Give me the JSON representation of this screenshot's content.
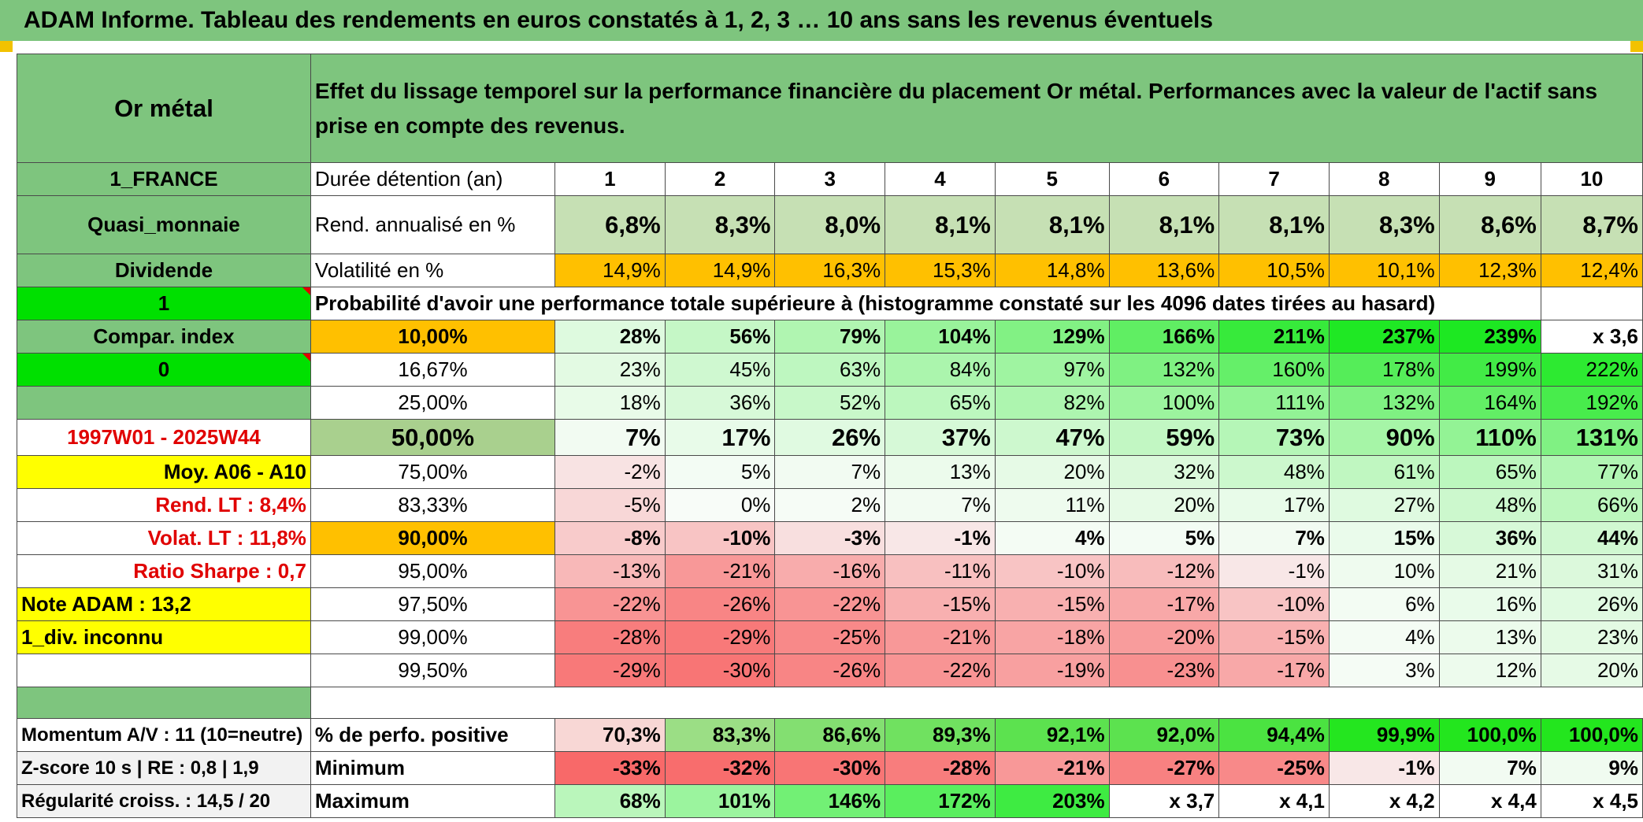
{
  "title": "ADAM Informe. Tableau des rendements en euros constatés à 1, 2, 3 … 10 ans sans les revenus éventuels",
  "sidebar": {
    "asset": "Or métal",
    "country": "1_FRANCE",
    "category": "Quasi_monnaie",
    "dividend_label": "Dividende",
    "dividend_value": "1",
    "compar_label": "Compar. index",
    "compar_value": "0",
    "period": "1997W01 - 2025W44",
    "moy": "Moy. A06 - A10",
    "rend_lt": "Rend. LT :   8,4%",
    "volat_lt": "Volat. LT :   11,8%",
    "sharpe": "Ratio Sharpe :   0,7",
    "note": "Note ADAM : 13,2",
    "div_note": "1_div. inconnu",
    "momentum": "Momentum A/V : 11 (10=neutre)",
    "zscore": "Z-score 10 s | RE : 0,8 | 1,9",
    "regularite": "Régularité croiss. : 14,5 / 20"
  },
  "header": {
    "description": "Effet du lissage temporel sur la performance financière du placement Or métal. Performances avec la valeur de l'actif sans prise en compte des revenus.",
    "duration_label": "Durée détention (an)",
    "years": [
      "1",
      "2",
      "3",
      "4",
      "5",
      "6",
      "7",
      "8",
      "9",
      "10"
    ]
  },
  "rend": {
    "label": "Rend. annualisé en %",
    "values": [
      "6,8%",
      "8,3%",
      "8,0%",
      "8,1%",
      "8,1%",
      "8,1%",
      "8,1%",
      "8,3%",
      "8,6%",
      "8,7%"
    ]
  },
  "volat": {
    "label": "Volatilité en %",
    "values": [
      "14,9%",
      "14,9%",
      "16,3%",
      "15,3%",
      "14,8%",
      "13,6%",
      "10,5%",
      "10,1%",
      "12,3%",
      "12,4%"
    ]
  },
  "prob_label": "Probabilité d'avoir une performance totale supérieure à (histogramme constaté sur les 4096 dates tirées au hasard)",
  "prob_rows": [
    {
      "p": "10,00%",
      "values": [
        "28%",
        "56%",
        "79%",
        "104%",
        "129%",
        "166%",
        "211%",
        "237%",
        "239%",
        "x 3,6"
      ]
    },
    {
      "p": "16,67%",
      "values": [
        "23%",
        "45%",
        "63%",
        "84%",
        "97%",
        "132%",
        "160%",
        "178%",
        "199%",
        "222%"
      ]
    },
    {
      "p": "25,00%",
      "values": [
        "18%",
        "36%",
        "52%",
        "65%",
        "82%",
        "100%",
        "111%",
        "132%",
        "164%",
        "192%"
      ]
    },
    {
      "p": "50,00%",
      "values": [
        "7%",
        "17%",
        "26%",
        "37%",
        "47%",
        "59%",
        "73%",
        "90%",
        "110%",
        "131%"
      ]
    },
    {
      "p": "75,00%",
      "values": [
        "-2%",
        "5%",
        "7%",
        "13%",
        "20%",
        "32%",
        "48%",
        "61%",
        "65%",
        "77%"
      ]
    },
    {
      "p": "83,33%",
      "values": [
        "-5%",
        "0%",
        "2%",
        "7%",
        "11%",
        "20%",
        "17%",
        "27%",
        "48%",
        "66%"
      ]
    },
    {
      "p": "90,00%",
      "values": [
        "-8%",
        "-10%",
        "-3%",
        "-1%",
        "4%",
        "5%",
        "7%",
        "15%",
        "36%",
        "44%"
      ]
    },
    {
      "p": "95,00%",
      "values": [
        "-13%",
        "-21%",
        "-16%",
        "-11%",
        "-10%",
        "-12%",
        "-1%",
        "10%",
        "21%",
        "31%"
      ]
    },
    {
      "p": "97,50%",
      "values": [
        "-22%",
        "-26%",
        "-22%",
        "-15%",
        "-15%",
        "-17%",
        "-10%",
        "6%",
        "16%",
        "26%"
      ]
    },
    {
      "p": "99,00%",
      "values": [
        "-28%",
        "-29%",
        "-25%",
        "-21%",
        "-18%",
        "-20%",
        "-15%",
        "4%",
        "13%",
        "23%"
      ]
    },
    {
      "p": "99,50%",
      "values": [
        "-29%",
        "-30%",
        "-26%",
        "-22%",
        "-19%",
        "-23%",
        "-17%",
        "3%",
        "12%",
        "20%"
      ]
    }
  ],
  "pos": {
    "label": "% de perfo. positive",
    "values": [
      "70,3%",
      "83,3%",
      "86,6%",
      "89,3%",
      "92,1%",
      "92,0%",
      "94,4%",
      "99,9%",
      "100,0%",
      "100,0%"
    ]
  },
  "min": {
    "label": "Minimum",
    "values": [
      "-33%",
      "-32%",
      "-30%",
      "-28%",
      "-21%",
      "-27%",
      "-25%",
      "-1%",
      "7%",
      "9%"
    ]
  },
  "max": {
    "label": "Maximum",
    "values": [
      "68%",
      "101%",
      "146%",
      "172%",
      "203%",
      "x 3,7",
      "x 4,1",
      "x 4,2",
      "x 4,4",
      "x 4,5"
    ]
  },
  "colors": {
    "title_bar": "#7ec57e",
    "rend_bg": "#c6e0b4",
    "volat_bg": "#ffc000",
    "highlight_green": "#00e000",
    "highlight_yellow": "#ffff00",
    "negative_red": "#f8696b",
    "positive_green": "#63e463"
  }
}
